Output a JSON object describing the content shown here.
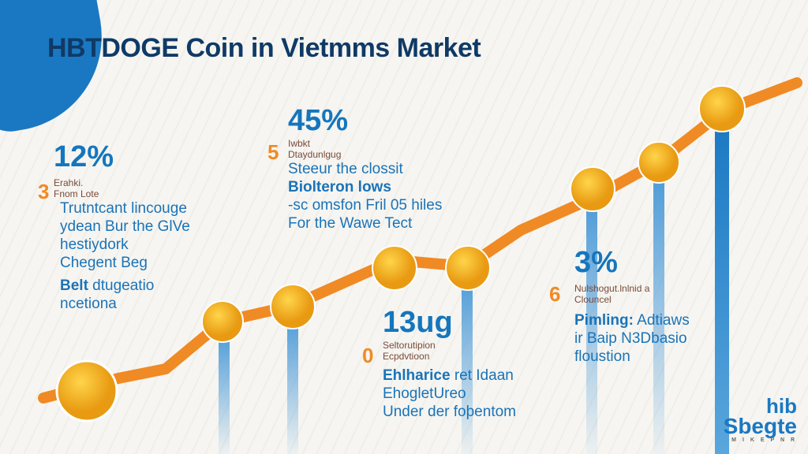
{
  "title": "HBTDOGE Coin in Vietmms Market",
  "colors": {
    "line": "#f08a24",
    "bars": "#5aa6dd",
    "accent": "#1476bd",
    "coin": "#f5b21e"
  },
  "blocks": [
    {
      "percent": "12%",
      "number": "3",
      "small": [
        "Erahki.",
        "Fnom Lote"
      ],
      "lines": [
        "Trutntcant lincouge",
        "ydean Bur  the GlVe",
        "hestiydork",
        "Chegent Beg"
      ],
      "bold_lead": "Belt",
      "bold_rest": " dtugeatio",
      "last": "ncetiona"
    },
    {
      "percent": "45%",
      "number": "5",
      "small": [
        "Iwbkt",
        "Dtaydunlgug"
      ],
      "lines": [
        "Steeur the clossit"
      ],
      "bold_lead": "Biolteron lows",
      "after": [
        "-sc omsfon Fril 05 hiles",
        "For the Wawe Tect"
      ]
    },
    {
      "percent": "13ug",
      "number": "0",
      "small": [
        "Seltorutipion",
        "Ecpdvtioon"
      ],
      "bold_lead": "Ehlharice",
      "bold_rest": " ret Idaan",
      "after": [
        "EhogletUreo",
        "Under der foþentom"
      ]
    },
    {
      "percent": "3%",
      "number": "6",
      "small": [
        "Nulshogut.lnlnid  a",
        "Clouncel"
      ],
      "bold_lead": "Pimling:",
      "bold_rest": " Adtiaws",
      "after": [
        "ir Baip N3Dbasio",
        "floustion"
      ]
    }
  ],
  "logo": {
    "top": "hib",
    "main": "Sbegte",
    "tag": "M I K E P N R"
  }
}
